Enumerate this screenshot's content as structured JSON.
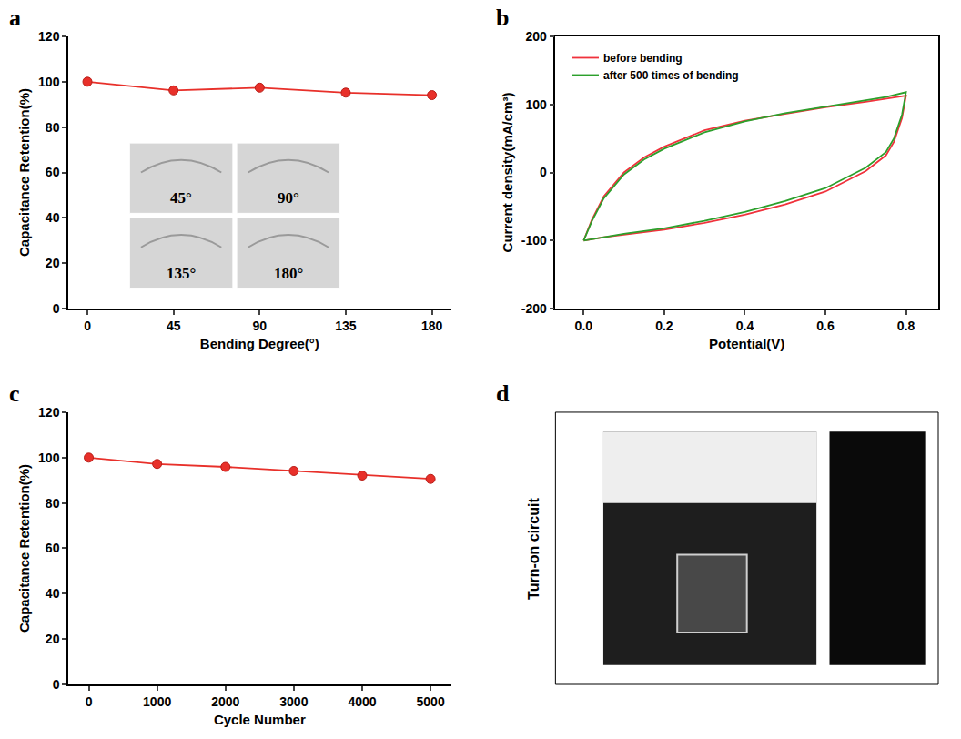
{
  "chart_data": [
    {
      "label": "a",
      "type": "line",
      "x_label": "Bending Degree(°)",
      "y_label": "Capacitance Retention(%)",
      "x": [
        0,
        45,
        90,
        135,
        180
      ],
      "series": [
        {
          "values": [
            100,
            96.2,
            97.4,
            95.2,
            94.1
          ],
          "color": "#e8302a",
          "marker": "circle",
          "line_style": "solid"
        }
      ],
      "xlim": [
        -10,
        190
      ],
      "xticks": [
        0,
        45,
        90,
        135,
        180
      ],
      "ylim": [
        0,
        120
      ],
      "yticks": [
        0,
        20,
        40,
        60,
        80,
        100,
        120
      ],
      "annotations": [
        "45°",
        "90°",
        "135°",
        "180°"
      ],
      "grid": false
    },
    {
      "label": "b",
      "type": "line",
      "x_label": "Potential(V)",
      "y_label": "Current density(mA/cm³)",
      "series": [
        {
          "name": "before bending",
          "color": "#f0323c",
          "line_style": "solid",
          "x": [
            0,
            0.02,
            0.05,
            0.1,
            0.15,
            0.2,
            0.3,
            0.4,
            0.5,
            0.6,
            0.7,
            0.75,
            0.8,
            0.79,
            0.77,
            0.75,
            0.7,
            0.6,
            0.5,
            0.4,
            0.3,
            0.2,
            0.1,
            0.05,
            0
          ],
          "values": [
            -100,
            -70,
            -35,
            0,
            22,
            38,
            62,
            76,
            86,
            96,
            104,
            108,
            113,
            80,
            45,
            25,
            2,
            -28,
            -47,
            -62,
            -74,
            -84,
            -91,
            -95,
            -100
          ]
        },
        {
          "name": "after 500 times of bending",
          "color": "#2ca02c",
          "line_style": "solid",
          "x": [
            0,
            0.02,
            0.05,
            0.1,
            0.15,
            0.2,
            0.3,
            0.4,
            0.5,
            0.6,
            0.7,
            0.75,
            0.8,
            0.79,
            0.77,
            0.75,
            0.7,
            0.6,
            0.5,
            0.4,
            0.3,
            0.2,
            0.1,
            0.05,
            0
          ],
          "values": [
            -100,
            -72,
            -38,
            -3,
            19,
            35,
            59,
            75,
            87,
            97,
            106,
            111,
            118,
            85,
            50,
            30,
            7,
            -23,
            -42,
            -58,
            -71,
            -82,
            -90,
            -95,
            -100
          ]
        }
      ],
      "xlim": [
        -0.07,
        0.88
      ],
      "xticks": [
        {
          "value": 0,
          "label": "0.0"
        },
        {
          "value": 0.2,
          "label": "0.2"
        },
        {
          "value": 0.4,
          "label": "0.4"
        },
        {
          "value": 0.6,
          "label": "0.6"
        },
        {
          "value": 0.8,
          "label": "0.8"
        }
      ],
      "ylim": [
        -200,
        200
      ],
      "yticks": [
        -200,
        -100,
        0,
        100,
        200
      ],
      "legend": "upper left",
      "grid": false
    },
    {
      "label": "c",
      "type": "line",
      "x_label": "Cycle Number",
      "y_label": "Capacitance Retention(%)",
      "x": [
        0,
        1000,
        2000,
        3000,
        4000,
        5000
      ],
      "series": [
        {
          "values": [
            100,
            97.2,
            95.9,
            94.1,
            92.1,
            90.6
          ],
          "color": "#e8302a",
          "marker": "circle",
          "line_style": "solid"
        }
      ],
      "xlim": [
        -300,
        5300
      ],
      "xticks": [
        0,
        1000,
        2000,
        3000,
        4000,
        5000
      ],
      "ylim": [
        0,
        120
      ],
      "yticks": [
        0,
        20,
        40,
        60,
        80,
        100,
        120
      ],
      "grid": false
    }
  ],
  "panel_d": {
    "label": "d",
    "title": "Turn-on circuit"
  }
}
